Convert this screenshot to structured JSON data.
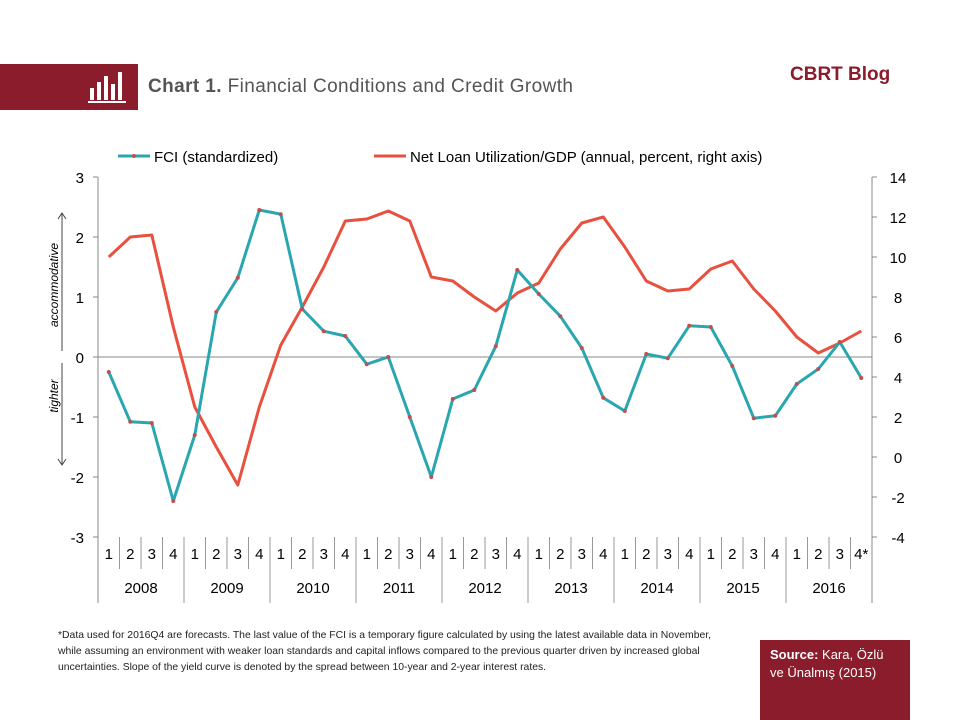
{
  "header": {
    "title_bold": "Chart 1.",
    "title_rest": " Financial Conditions and Credit Growth",
    "brand": "CBRT Blog",
    "icon": "bar-chart-icon"
  },
  "footnote": "*Data used for 2016Q4 are forecasts. The last value of the FCI is a temporary figure calculated by using the latest available data in November, while assuming an environment with weaker loan standards and capital inflows compared to the previous quarter driven by increased global uncertainties. Slope of the yield curve is denoted by the spread between 10-year and 2-year interest rates.",
  "source": {
    "label": "Source:",
    "text": " Kara, Özlü ve Ünalmış (2015)"
  },
  "colors": {
    "accent": "#8a1c2b",
    "fci": "#2aa6b0",
    "loan": "#e8503f"
  },
  "chart_data": {
    "type": "line",
    "title": "",
    "legend_position": "top",
    "left_axis": {
      "ylim": [
        -3,
        3
      ],
      "ticks": [
        "-3",
        "-2",
        "-1",
        "0",
        "1",
        "2",
        "3"
      ]
    },
    "right_axis": {
      "ylim": [
        -4,
        14
      ],
      "ticks": [
        "-4",
        "-2",
        "0",
        "2",
        "4",
        "6",
        "8",
        "10",
        "12",
        "14"
      ]
    },
    "annotations": {
      "up": "accommodative",
      "down": "tighter"
    },
    "quarter_labels": [
      "1",
      "2",
      "3",
      "4",
      "1",
      "2",
      "3",
      "4",
      "1",
      "2",
      "3",
      "4",
      "1",
      "2",
      "3",
      "4",
      "1",
      "2",
      "3",
      "4",
      "1",
      "2",
      "3",
      "4",
      "1",
      "2",
      "3",
      "4",
      "1",
      "2",
      "3",
      "4",
      "1",
      "2",
      "3",
      "4*"
    ],
    "years": [
      "2008",
      "2009",
      "2010",
      "2011",
      "2012",
      "2013",
      "2014",
      "2015",
      "2016"
    ],
    "series": [
      {
        "name": "FCI (standardized)",
        "axis": "left",
        "values": [
          -0.25,
          -1.08,
          -1.1,
          -2.4,
          -1.3,
          0.75,
          1.32,
          2.45,
          2.38,
          0.8,
          0.43,
          0.35,
          -0.12,
          0.0,
          -1.0,
          -2.0,
          -0.7,
          -0.55,
          0.18,
          1.45,
          1.05,
          0.68,
          0.15,
          -0.68,
          -0.9,
          0.05,
          -0.02,
          0.52,
          0.5,
          -0.15,
          -1.02,
          -0.98,
          -0.45,
          -0.2,
          0.25,
          -0.35
        ]
      },
      {
        "name": "Net Loan Utilization/GDP (annual, percent, right axis)",
        "axis": "right",
        "values": [
          10.0,
          11.0,
          11.1,
          6.5,
          2.5,
          0.5,
          -1.4,
          2.5,
          5.6,
          7.5,
          9.5,
          11.8,
          11.9,
          12.3,
          11.8,
          9.0,
          8.8,
          8.0,
          7.3,
          8.2,
          8.7,
          10.4,
          11.7,
          12.0,
          10.5,
          8.8,
          8.3,
          8.4,
          9.4,
          9.8,
          8.4,
          7.3,
          6.0,
          5.2,
          5.7,
          6.3
        ]
      }
    ]
  }
}
